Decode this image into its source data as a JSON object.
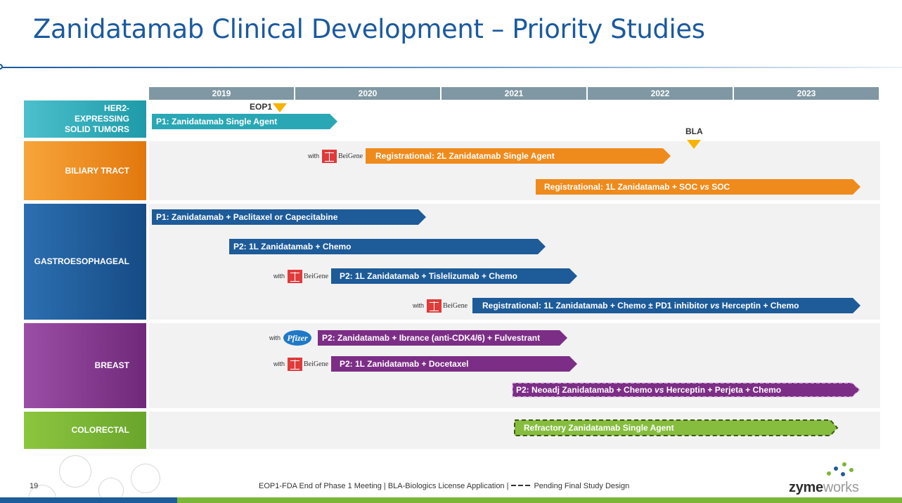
{
  "title": "Zanidatamab Clinical Development – Priority Studies",
  "years": [
    "2019",
    "2020",
    "2021",
    "2022",
    "2023"
  ],
  "categories": {
    "her2": "HER2-EXPRESSING SOLID TUMORS",
    "biliary": "BILIARY TRACT",
    "gastro": "GASTROESOPHAGEAL",
    "breast": "BREAST",
    "colorectal": "COLORECTAL"
  },
  "milestones": {
    "eop1": "EOP1",
    "bla": "BLA"
  },
  "with_label": "with",
  "partners": {
    "beigene": "BeiGene",
    "pfizer": "Pfizer"
  },
  "bars": {
    "her2_p1": "P1: Zanidatamab Single Agent",
    "biliary_2l": "Registrational: 2L Zanidatamab Single Agent",
    "biliary_1l_a": "Registrational: 1L Zanidatamab + SOC ",
    "biliary_1l_vs": "vs",
    "biliary_1l_b": " SOC",
    "gastro_p1": "P1: Zanidatamab + Paclitaxel or Capecitabine",
    "gastro_p2_chemo": "P2: 1L Zanidatamab + Chemo",
    "gastro_p2_tisle": "P2: 1L Zanidatamab + Tislelizumab + Chemo",
    "gastro_reg_a": "Registrational: 1L Zanidatamab + Chemo ± PD1 inhibitor ",
    "gastro_reg_vs": "vs",
    "gastro_reg_b": " Herceptin + Chemo",
    "breast_ibrance": "P2: Zanidatamab + Ibrance (anti-CDK4/6) + Fulvestrant",
    "breast_docetaxel": "P2: 1L Zanidatamab + Docetaxel",
    "breast_neoadj_a": "P2: Neoadj Zanidatamab + Chemo ",
    "breast_neoadj_vs": "vs",
    "breast_neoadj_b": " Herceptin + Perjeta + Chemo",
    "colorectal_refractory": "Refractory Zanidatamab Single Agent"
  },
  "footer": {
    "page_number": "19",
    "note_a": "EOP1-FDA End of Phase 1 Meeting  | BLA-Biologics License Application |",
    "note_b": "Pending Final Study Design",
    "logo_a": "zyme",
    "logo_b": "works"
  },
  "colors": {
    "title": "#1b5a9e",
    "teal": "#2aa7b5",
    "orange": "#ef8a1c",
    "blue": "#1d5b99",
    "purple": "#7c2e86",
    "green": "#7ab738",
    "milestone": "#f6b400"
  }
}
